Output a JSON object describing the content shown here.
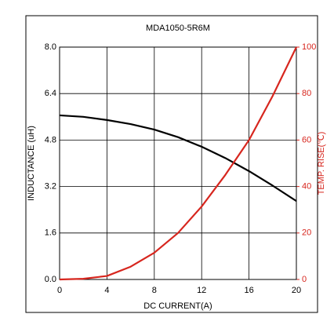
{
  "chart_data": {
    "type": "line",
    "title": "MDA1050-5R6M",
    "x_label": "DC CURRENT(A)",
    "y_label": "INDUCTANCE (uH)",
    "y2_label": "TEMP. RISE(℃)",
    "x": [
      0,
      2,
      4,
      6,
      8,
      10,
      12,
      14,
      16,
      18,
      20
    ],
    "series": [
      {
        "name": "INDUCTANCE (uH)",
        "color": "#000000",
        "values": [
          5.65,
          5.6,
          5.49,
          5.35,
          5.16,
          4.9,
          4.57,
          4.18,
          3.73,
          3.23,
          2.7
        ]
      },
      {
        "name": "TEMP. RISE(℃)",
        "color": "#d7261e",
        "axis": "y2",
        "values": [
          0,
          0.3,
          1.5,
          5.5,
          11.5,
          20,
          31.4,
          45,
          60,
          79,
          100
        ]
      }
    ],
    "xlim": [
      0,
      20
    ],
    "xticks": [
      0,
      4,
      8,
      12,
      16,
      20
    ],
    "ylim": [
      0,
      8
    ],
    "yticks": [
      {
        "value": 0,
        "label": "0.0"
      },
      1.6,
      3.2,
      4.8,
      6.4,
      {
        "value": 8,
        "label": "8.0"
      }
    ],
    "y2lim": [
      0,
      100
    ],
    "y2ticks": [
      0,
      20,
      40,
      60,
      80,
      100
    ],
    "grid": true
  }
}
